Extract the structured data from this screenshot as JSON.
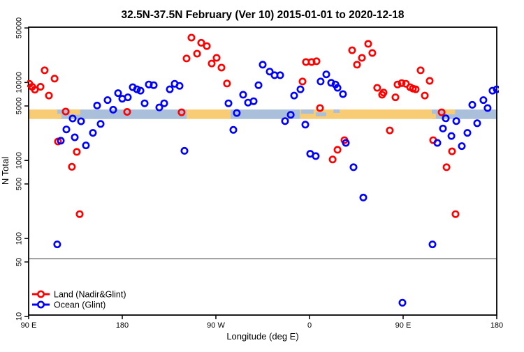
{
  "title": "32.5N-37.5N February (Ver 10)  2015-01-01 to 2020-12-18",
  "chart_data": {
    "type": "scatter",
    "title": "32.5N-37.5N February (Ver 10)  2015-01-01 to 2020-12-18",
    "xlabel": "Longitude (deg E)",
    "ylabel": "N Total",
    "x_axis": {
      "range_deg": [
        90,
        540
      ],
      "tick_deg": [
        90,
        180,
        270,
        360,
        450,
        540
      ],
      "tick_labels": [
        "90 E",
        "180",
        "90 W",
        "0",
        "90 E",
        "180"
      ]
    },
    "y_axis": {
      "scale": "log10",
      "range": [
        10,
        50000
      ],
      "tick_values": [
        50000,
        10000,
        5000,
        1000,
        500,
        100,
        50,
        10
      ],
      "tick_labels": [
        "50000",
        "10000",
        "5000",
        "1000",
        "500",
        "100",
        "50",
        "10"
      ]
    },
    "grid": false,
    "legend_position": "bottom-left-inside",
    "reference_line": {
      "value": 55,
      "color": "#7f7f7f"
    },
    "land_ocean_band": {
      "value_range": [
        3400,
        4500
      ],
      "land_color": "#F8CC74",
      "ocean_color": "#A9BFDA",
      "segments": [
        {
          "from": 90,
          "to": 117.5,
          "surface": "land"
        },
        {
          "from": 117.5,
          "to": 242,
          "surface": "ocean"
        },
        {
          "from": 242,
          "to": 284,
          "surface": "land"
        },
        {
          "from": 284,
          "to": 351,
          "surface": "ocean"
        },
        {
          "from": 351,
          "to": 477.5,
          "surface": "land"
        },
        {
          "from": 477.5,
          "to": 540,
          "surface": "ocean"
        }
      ],
      "patches": [
        {
          "from": 117.5,
          "to": 121.5,
          "surface": "land",
          "top": 0.45,
          "bottom": 1
        },
        {
          "from": 129.5,
          "to": 139.5,
          "surface": "land",
          "top": 0,
          "bottom": 0.55
        },
        {
          "from": 352,
          "to": 364,
          "surface": "ocean",
          "top": 0,
          "bottom": 0.45
        },
        {
          "from": 366,
          "to": 376,
          "surface": "ocean",
          "top": 0.3,
          "bottom": 0.7
        },
        {
          "from": 383,
          "to": 389,
          "surface": "ocean",
          "top": 0,
          "bottom": 0.35
        },
        {
          "from": 477.5,
          "to": 481.5,
          "surface": "land",
          "top": 0.45,
          "bottom": 1
        },
        {
          "from": 490,
          "to": 500,
          "surface": "land",
          "top": 0,
          "bottom": 0.5
        }
      ]
    },
    "series": [
      {
        "name": "Land (Nadir&Glint)",
        "color": "#FF0000",
        "marker": "open-circle",
        "points": [
          [
            90.7,
            9600
          ],
          [
            93.4,
            8800
          ],
          [
            96.0,
            8100
          ],
          [
            101.4,
            8800
          ],
          [
            105.4,
            14300
          ],
          [
            109.5,
            6800
          ],
          [
            114.9,
            11200
          ],
          [
            118.2,
            1750
          ],
          [
            125.6,
            4240
          ],
          [
            131.6,
            830
          ],
          [
            136.3,
            1290
          ],
          [
            139.0,
            205
          ],
          [
            184.7,
            4200
          ],
          [
            237.0,
            4150
          ],
          [
            241.8,
            20300
          ],
          [
            246.5,
            37600
          ],
          [
            251.9,
            23400
          ],
          [
            255.9,
            32300
          ],
          [
            261.3,
            29300
          ],
          [
            266.0,
            17500
          ],
          [
            270.7,
            20700
          ],
          [
            275.4,
            15500
          ],
          [
            280.7,
            9700
          ],
          [
            353.3,
            10300
          ],
          [
            356.6,
            18300
          ],
          [
            362.0,
            18300
          ],
          [
            366.7,
            18700
          ],
          [
            370.1,
            4700
          ],
          [
            382.2,
            1030
          ],
          [
            386.9,
            1370
          ],
          [
            393.6,
            1820
          ],
          [
            401.0,
            25900
          ],
          [
            405.7,
            16900
          ],
          [
            410.4,
            20700
          ],
          [
            416.4,
            31300
          ],
          [
            420.4,
            23900
          ],
          [
            425.1,
            8540
          ],
          [
            429.8,
            6970
          ],
          [
            431.2,
            7420
          ],
          [
            437.2,
            2430
          ],
          [
            442.6,
            6450
          ],
          [
            444.6,
            9420
          ],
          [
            448.6,
            9810
          ],
          [
            452.7,
            9620
          ],
          [
            456.7,
            8700
          ],
          [
            459.4,
            8350
          ],
          [
            462.1,
            8180
          ],
          [
            466.8,
            14300
          ],
          [
            470.8,
            6800
          ],
          [
            475.5,
            10500
          ],
          [
            478.9,
            1820
          ],
          [
            487.0,
            4150
          ],
          [
            491.7,
            820
          ],
          [
            497.0,
            1310
          ],
          [
            500.4,
            205
          ]
        ]
      },
      {
        "name": "Ocean (Glint)",
        "color": "#0000FF",
        "marker": "open-circle",
        "points": [
          [
            117.5,
            84
          ],
          [
            120.9,
            1790
          ],
          [
            126.3,
            2500
          ],
          [
            132.3,
            3450
          ],
          [
            134.3,
            1980
          ],
          [
            140.4,
            3180
          ],
          [
            145.1,
            1560
          ],
          [
            151.8,
            2260
          ],
          [
            155.8,
            5060
          ],
          [
            159.2,
            2940
          ],
          [
            165.9,
            5950
          ],
          [
            171.3,
            4480
          ],
          [
            176.0,
            7310
          ],
          [
            180.0,
            6200
          ],
          [
            185.4,
            6460
          ],
          [
            190.1,
            8700
          ],
          [
            194.1,
            8180
          ],
          [
            197.5,
            7850
          ],
          [
            201.5,
            5410
          ],
          [
            205.5,
            9420
          ],
          [
            210.2,
            9230
          ],
          [
            215.6,
            4790
          ],
          [
            220.3,
            5410
          ],
          [
            225.7,
            8180
          ],
          [
            230.4,
            9620
          ],
          [
            235.1,
            9040
          ],
          [
            239.8,
            1330
          ],
          [
            282.1,
            5410
          ],
          [
            286.8,
            2470
          ],
          [
            290.1,
            4060
          ],
          [
            296.2,
            6970
          ],
          [
            300.9,
            5520
          ],
          [
            306.3,
            5750
          ],
          [
            311.0,
            9230
          ],
          [
            315.0,
            16900
          ],
          [
            321.7,
            13800
          ],
          [
            326.4,
            12400
          ],
          [
            331.8,
            12400
          ],
          [
            336.5,
            3200
          ],
          [
            341.9,
            3850
          ],
          [
            345.2,
            6800
          ],
          [
            351.3,
            8180
          ],
          [
            356.0,
            2880
          ],
          [
            360.7,
            1220
          ],
          [
            366.0,
            1140
          ],
          [
            370.7,
            10300
          ],
          [
            376.1,
            12700
          ],
          [
            380.8,
            9900
          ],
          [
            384.9,
            9420
          ],
          [
            386.9,
            8540
          ],
          [
            392.2,
            7100
          ],
          [
            394.9,
            1680
          ],
          [
            402.3,
            820
          ],
          [
            411.7,
            335
          ],
          [
            449.3,
            15
          ],
          [
            478.2,
            84
          ],
          [
            482.9,
            1680
          ],
          [
            488.3,
            2570
          ],
          [
            491.0,
            3470
          ],
          [
            496.4,
            2060
          ],
          [
            501.1,
            3200
          ],
          [
            506.4,
            1530
          ],
          [
            511.8,
            2260
          ],
          [
            516.5,
            5170
          ],
          [
            521.2,
            3000
          ],
          [
            527.2,
            5950
          ],
          [
            531.2,
            4700
          ],
          [
            535.9,
            7850
          ],
          [
            540.0,
            8180
          ]
        ]
      }
    ]
  },
  "legend": {
    "items": [
      {
        "label": "Land (Nadir&Glint)",
        "color": "#FF0000"
      },
      {
        "label": "Ocean (Glint)",
        "color": "#0000FF"
      }
    ]
  }
}
